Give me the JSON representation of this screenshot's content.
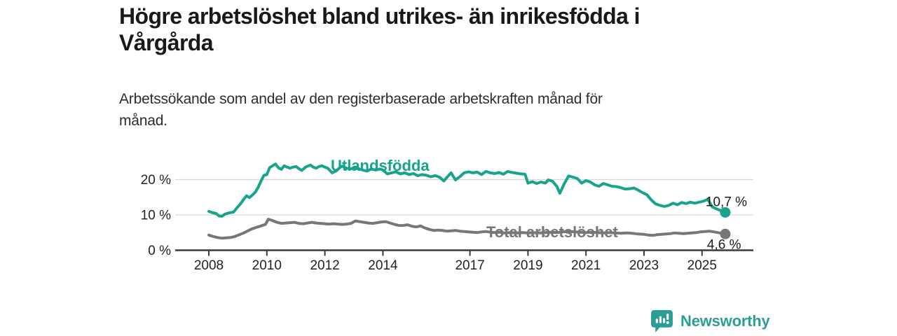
{
  "header": {
    "title_lines": [
      "Högre arbetslöshet bland utrikes- än inrikesfödda i",
      "Vårgårda"
    ],
    "subtitle_lines": [
      "Arbetssökande som andel av den registerbaserade arbetskraften månad för",
      "månad."
    ]
  },
  "branding": {
    "name": "Newsworthy",
    "icon": "newsworthy-speech-bubble-bar-chart-icon",
    "color": "#2a9e96"
  },
  "chart_data": {
    "type": "line",
    "title": "Högre arbetslöshet bland utrikes- än inrikesfödda i Vårgårda",
    "subtitle": "Arbetssökande som andel av den registerbaserade arbetskraften månad för månad.",
    "unit": "%",
    "grid": "horizontal",
    "legend_position": "inline-labels",
    "x_axis": {
      "range": [
        2008,
        2025.8
      ],
      "ticks": [
        {
          "value": 2008,
          "label": "2008"
        },
        {
          "value": 2010,
          "label": "2010"
        },
        {
          "value": 2012,
          "label": "2012"
        },
        {
          "value": 2014,
          "label": "2014"
        },
        {
          "value": 2017,
          "label": "2017"
        },
        {
          "value": 2019,
          "label": "2019"
        },
        {
          "value": 2021,
          "label": "2021"
        },
        {
          "value": 2023,
          "label": "2023"
        },
        {
          "value": 2025,
          "label": "2025"
        }
      ]
    },
    "y_axis": {
      "range": [
        0,
        26
      ],
      "ticks": [
        {
          "value": 0,
          "label": "0 %"
        },
        {
          "value": 10,
          "label": "10 %"
        },
        {
          "value": 20,
          "label": "20 %"
        }
      ]
    },
    "series": [
      {
        "name": "Utlandsfödda",
        "color": "#17a38c",
        "end_label": "10,7 %",
        "end_value": 10.7,
        "points": [
          [
            2008.0,
            11.0
          ],
          [
            2008.1,
            10.7
          ],
          [
            2008.25,
            10.4
          ],
          [
            2008.35,
            9.7
          ],
          [
            2008.45,
            9.6
          ],
          [
            2008.55,
            10.2
          ],
          [
            2008.7,
            10.6
          ],
          [
            2008.85,
            10.8
          ],
          [
            2009.0,
            12.3
          ],
          [
            2009.1,
            13.2
          ],
          [
            2009.2,
            14.4
          ],
          [
            2009.3,
            15.4
          ],
          [
            2009.4,
            14.9
          ],
          [
            2009.5,
            15.6
          ],
          [
            2009.6,
            16.4
          ],
          [
            2009.7,
            17.8
          ],
          [
            2009.8,
            19.6
          ],
          [
            2009.9,
            21.2
          ],
          [
            2010.0,
            21.4
          ],
          [
            2010.1,
            23.4
          ],
          [
            2010.2,
            23.9
          ],
          [
            2010.3,
            24.4
          ],
          [
            2010.4,
            23.3
          ],
          [
            2010.5,
            22.9
          ],
          [
            2010.6,
            23.9
          ],
          [
            2010.7,
            23.5
          ],
          [
            2010.8,
            23.2
          ],
          [
            2010.9,
            23.5
          ],
          [
            2011.0,
            23.7
          ],
          [
            2011.1,
            23.1
          ],
          [
            2011.2,
            22.6
          ],
          [
            2011.35,
            23.6
          ],
          [
            2011.5,
            24.1
          ],
          [
            2011.6,
            23.5
          ],
          [
            2011.7,
            23.2
          ],
          [
            2011.8,
            23.7
          ],
          [
            2011.9,
            23.9
          ],
          [
            2012.0,
            23.5
          ],
          [
            2012.1,
            23.2
          ],
          [
            2012.25,
            21.9
          ],
          [
            2012.4,
            22.5
          ],
          [
            2012.5,
            23.3
          ],
          [
            2012.6,
            23.8
          ],
          [
            2012.75,
            23.2
          ],
          [
            2012.9,
            23.0
          ],
          [
            2013.0,
            23.4
          ],
          [
            2013.15,
            23.1
          ],
          [
            2013.3,
            22.7
          ],
          [
            2013.45,
            22.4
          ],
          [
            2013.6,
            23.0
          ],
          [
            2013.75,
            22.7
          ],
          [
            2013.9,
            23.0
          ],
          [
            2014.0,
            22.7
          ],
          [
            2014.15,
            21.6
          ],
          [
            2014.3,
            21.9
          ],
          [
            2014.45,
            22.2
          ],
          [
            2014.6,
            21.6
          ],
          [
            2014.75,
            21.9
          ],
          [
            2014.9,
            21.4
          ],
          [
            2015.05,
            21.7
          ],
          [
            2015.2,
            21.1
          ],
          [
            2015.35,
            21.4
          ],
          [
            2015.5,
            21.2
          ],
          [
            2015.65,
            20.8
          ],
          [
            2015.8,
            21.1
          ],
          [
            2015.95,
            20.7
          ],
          [
            2016.1,
            19.6
          ],
          [
            2016.25,
            21.0
          ],
          [
            2016.35,
            21.9
          ],
          [
            2016.5,
            19.9
          ],
          [
            2016.65,
            20.8
          ],
          [
            2016.8,
            21.9
          ],
          [
            2016.95,
            22.2
          ],
          [
            2017.1,
            21.9
          ],
          [
            2017.25,
            22.1
          ],
          [
            2017.4,
            21.4
          ],
          [
            2017.55,
            22.3
          ],
          [
            2017.7,
            21.9
          ],
          [
            2017.85,
            21.7
          ],
          [
            2018.0,
            22.0
          ],
          [
            2018.15,
            21.5
          ],
          [
            2018.3,
            22.3
          ],
          [
            2018.45,
            22.0
          ],
          [
            2018.6,
            21.8
          ],
          [
            2018.75,
            21.6
          ],
          [
            2018.9,
            21.5
          ],
          [
            2019.0,
            19.0
          ],
          [
            2019.15,
            19.4
          ],
          [
            2019.3,
            18.9
          ],
          [
            2019.45,
            19.3
          ],
          [
            2019.6,
            19.0
          ],
          [
            2019.7,
            19.9
          ],
          [
            2019.85,
            19.5
          ],
          [
            2020.0,
            18.0
          ],
          [
            2020.1,
            16.1
          ],
          [
            2020.25,
            18.8
          ],
          [
            2020.4,
            21.0
          ],
          [
            2020.55,
            20.7
          ],
          [
            2020.7,
            20.3
          ],
          [
            2020.85,
            19.0
          ],
          [
            2021.0,
            19.7
          ],
          [
            2021.15,
            19.3
          ],
          [
            2021.3,
            18.5
          ],
          [
            2021.45,
            18.1
          ],
          [
            2021.6,
            18.9
          ],
          [
            2021.75,
            18.5
          ],
          [
            2021.9,
            18.1
          ],
          [
            2022.05,
            18.0
          ],
          [
            2022.2,
            17.7
          ],
          [
            2022.35,
            17.3
          ],
          [
            2022.5,
            17.4
          ],
          [
            2022.65,
            17.6
          ],
          [
            2022.8,
            17.0
          ],
          [
            2022.95,
            16.3
          ],
          [
            2023.1,
            15.7
          ],
          [
            2023.25,
            14.2
          ],
          [
            2023.4,
            13.1
          ],
          [
            2023.55,
            12.7
          ],
          [
            2023.7,
            12.4
          ],
          [
            2023.85,
            12.7
          ],
          [
            2024.0,
            13.3
          ],
          [
            2024.15,
            12.9
          ],
          [
            2024.3,
            13.5
          ],
          [
            2024.45,
            13.2
          ],
          [
            2024.6,
            13.6
          ],
          [
            2024.75,
            13.3
          ],
          [
            2024.9,
            13.6
          ],
          [
            2025.05,
            13.9
          ],
          [
            2025.2,
            14.4
          ],
          [
            2025.35,
            12.3
          ],
          [
            2025.5,
            11.7
          ],
          [
            2025.65,
            11.2
          ],
          [
            2025.8,
            10.7
          ]
        ]
      },
      {
        "name": "Total arbetslöshet",
        "color": "#76767b",
        "end_label": "4,6 %",
        "end_value": 4.6,
        "points": [
          [
            2008.0,
            4.3
          ],
          [
            2008.15,
            3.9
          ],
          [
            2008.3,
            3.6
          ],
          [
            2008.45,
            3.4
          ],
          [
            2008.6,
            3.5
          ],
          [
            2008.75,
            3.6
          ],
          [
            2008.9,
            3.9
          ],
          [
            2009.05,
            4.4
          ],
          [
            2009.2,
            4.9
          ],
          [
            2009.35,
            5.5
          ],
          [
            2009.5,
            6.1
          ],
          [
            2009.65,
            6.5
          ],
          [
            2009.8,
            6.9
          ],
          [
            2009.95,
            7.3
          ],
          [
            2010.05,
            8.8
          ],
          [
            2010.2,
            8.4
          ],
          [
            2010.35,
            7.9
          ],
          [
            2010.5,
            7.6
          ],
          [
            2010.65,
            7.7
          ],
          [
            2010.8,
            7.8
          ],
          [
            2010.95,
            7.9
          ],
          [
            2011.1,
            7.6
          ],
          [
            2011.25,
            7.5
          ],
          [
            2011.4,
            7.7
          ],
          [
            2011.55,
            7.9
          ],
          [
            2011.7,
            7.7
          ],
          [
            2011.85,
            7.6
          ],
          [
            2012.0,
            7.5
          ],
          [
            2012.15,
            7.4
          ],
          [
            2012.3,
            7.5
          ],
          [
            2012.45,
            7.4
          ],
          [
            2012.6,
            7.3
          ],
          [
            2012.75,
            7.4
          ],
          [
            2012.9,
            7.6
          ],
          [
            2013.05,
            8.3
          ],
          [
            2013.2,
            8.1
          ],
          [
            2013.35,
            7.9
          ],
          [
            2013.5,
            7.7
          ],
          [
            2013.65,
            7.6
          ],
          [
            2013.8,
            7.8
          ],
          [
            2013.95,
            8.0
          ],
          [
            2014.1,
            8.1
          ],
          [
            2014.25,
            7.7
          ],
          [
            2014.4,
            7.3
          ],
          [
            2014.55,
            7.0
          ],
          [
            2014.7,
            7.0
          ],
          [
            2014.85,
            7.2
          ],
          [
            2015.0,
            6.8
          ],
          [
            2015.15,
            6.6
          ],
          [
            2015.3,
            6.9
          ],
          [
            2015.45,
            6.3
          ],
          [
            2015.6,
            5.9
          ],
          [
            2015.75,
            5.6
          ],
          [
            2015.9,
            5.7
          ],
          [
            2016.05,
            5.6
          ],
          [
            2016.2,
            5.4
          ],
          [
            2016.35,
            5.5
          ],
          [
            2016.5,
            5.6
          ],
          [
            2016.65,
            5.4
          ],
          [
            2016.8,
            5.3
          ],
          [
            2016.95,
            5.2
          ],
          [
            2017.1,
            5.1
          ],
          [
            2017.25,
            5.0
          ],
          [
            2017.4,
            5.2
          ],
          [
            2017.55,
            5.3
          ],
          [
            2017.7,
            5.1
          ],
          [
            2017.85,
            5.0
          ],
          [
            2018.0,
            5.1
          ],
          [
            2018.2,
            4.9
          ],
          [
            2018.4,
            5.0
          ],
          [
            2018.6,
            4.9
          ],
          [
            2018.8,
            5.0
          ],
          [
            2019.0,
            4.9
          ],
          [
            2019.2,
            5.0
          ],
          [
            2019.4,
            4.9
          ],
          [
            2019.6,
            5.0
          ],
          [
            2019.8,
            5.1
          ],
          [
            2020.0,
            5.0
          ],
          [
            2020.2,
            5.2
          ],
          [
            2020.4,
            5.3
          ],
          [
            2020.6,
            5.2
          ],
          [
            2020.8,
            5.1
          ],
          [
            2021.0,
            5.0
          ],
          [
            2021.2,
            5.1
          ],
          [
            2021.4,
            5.0
          ],
          [
            2021.6,
            4.9
          ],
          [
            2021.8,
            5.0
          ],
          [
            2022.0,
            4.9
          ],
          [
            2022.2,
            4.8
          ],
          [
            2022.4,
            4.9
          ],
          [
            2022.6,
            4.8
          ],
          [
            2022.8,
            4.6
          ],
          [
            2023.0,
            4.5
          ],
          [
            2023.15,
            4.3
          ],
          [
            2023.3,
            4.2
          ],
          [
            2023.45,
            4.4
          ],
          [
            2023.6,
            4.5
          ],
          [
            2023.75,
            4.6
          ],
          [
            2023.9,
            4.7
          ],
          [
            2024.05,
            4.9
          ],
          [
            2024.2,
            4.8
          ],
          [
            2024.35,
            4.7
          ],
          [
            2024.5,
            4.8
          ],
          [
            2024.65,
            4.9
          ],
          [
            2024.8,
            5.0
          ],
          [
            2024.95,
            5.2
          ],
          [
            2025.1,
            5.3
          ],
          [
            2025.25,
            5.4
          ],
          [
            2025.4,
            5.2
          ],
          [
            2025.55,
            5.0
          ],
          [
            2025.7,
            4.8
          ],
          [
            2025.8,
            4.6
          ]
        ]
      }
    ],
    "colors": {
      "foreign_born_line": "#17a38c",
      "total_line": "#76767b",
      "gridline": "#d8d8d8",
      "axis": "#3b3b3b",
      "tick_label": "#222222",
      "end_label": "#1a1a1a"
    }
  }
}
